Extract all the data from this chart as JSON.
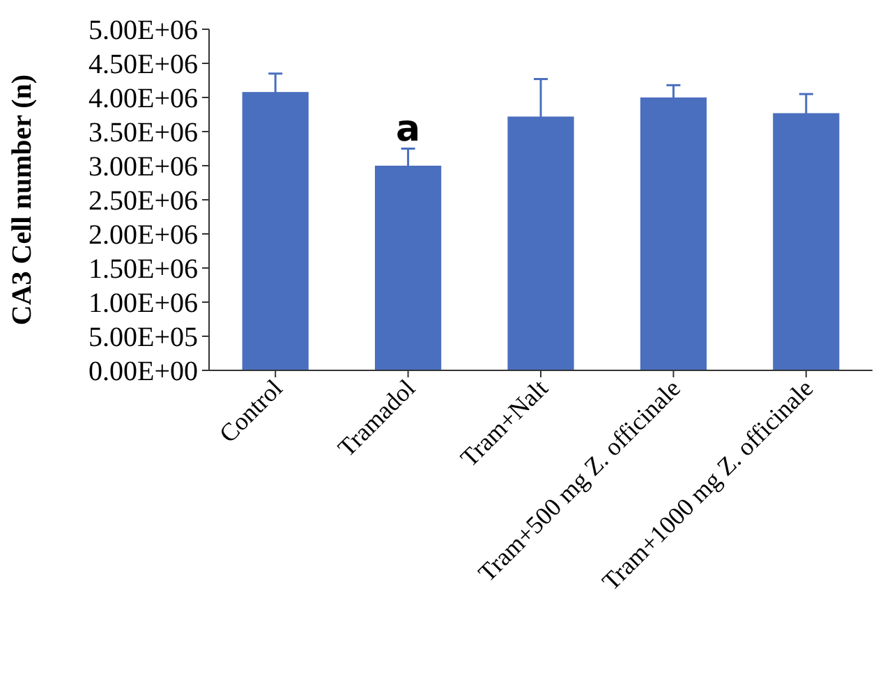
{
  "chart_data": {
    "type": "bar",
    "ylabel": "CA3 Cell number (n)",
    "categories": [
      "Control",
      "Tramadol",
      "Tram+Nalt",
      "Tram+500 mg Z. officinale",
      "Tram+1000 mg Z. officinale"
    ],
    "values": [
      4080000,
      3000000,
      3720000,
      4000000,
      3770000
    ],
    "errors": [
      270000,
      250000,
      550000,
      180000,
      280000
    ],
    "color": "#4a6fbf",
    "ylim": [
      0,
      5000000
    ],
    "yticks": [
      {
        "value": 0,
        "label": "0.00E+00"
      },
      {
        "value": 500000,
        "label": "5.00E+05"
      },
      {
        "value": 1000000,
        "label": "1.00E+06"
      },
      {
        "value": 1500000,
        "label": "1.50E+06"
      },
      {
        "value": 2000000,
        "label": "2.00E+06"
      },
      {
        "value": 2500000,
        "label": "2.50E+06"
      },
      {
        "value": 3000000,
        "label": "3.00E+06"
      },
      {
        "value": 3500000,
        "label": "3.50E+06"
      },
      {
        "value": 4000000,
        "label": "4.00E+06"
      },
      {
        "value": 4500000,
        "label": "4.50E+06"
      },
      {
        "value": 5000000,
        "label": "5.00E+06"
      }
    ],
    "grid": false,
    "annotations": [
      {
        "text": "a",
        "x": "Tramadol",
        "y": 3250000
      }
    ]
  }
}
